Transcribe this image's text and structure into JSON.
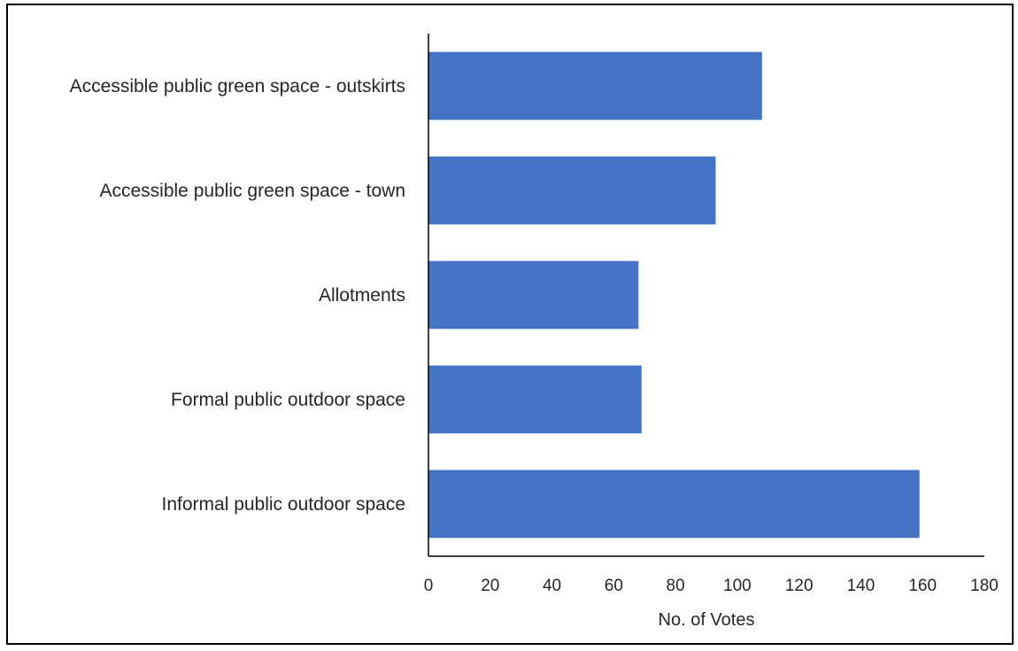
{
  "chart_data": {
    "type": "bar",
    "orientation": "horizontal",
    "title": "",
    "xlabel": "No. of Votes",
    "ylabel": "",
    "xlim": [
      0,
      180
    ],
    "xticks": [
      "0",
      "20",
      "40",
      "60",
      "80",
      "100",
      "120",
      "140",
      "160",
      "180"
    ],
    "grid": false,
    "legend": "none",
    "bar_color": "#4472C4",
    "categories": [
      "Accessible public green space - outskirts",
      "Accessible public green space - town",
      "Allotments",
      "Formal public outdoor space",
      "Informal public outdoor space"
    ],
    "values": [
      108,
      93,
      68,
      69,
      159
    ]
  }
}
